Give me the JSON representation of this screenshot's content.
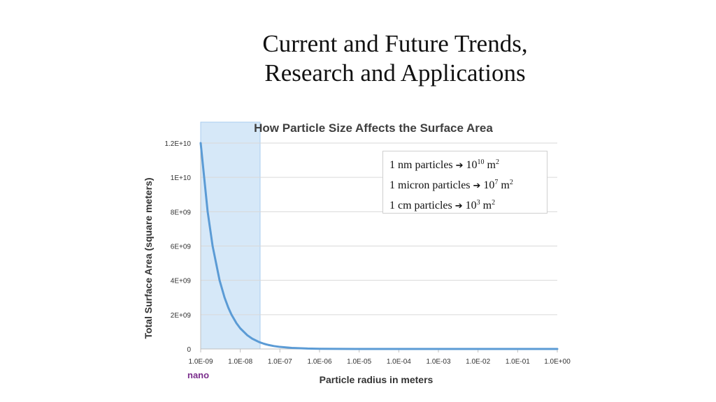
{
  "slide": {
    "title_line1": "Current and Future Trends,",
    "title_line2": "Research and Applications"
  },
  "legend": [
    {
      "text": "1 nm particles",
      "base": "10",
      "exp": "10",
      "unit": "m",
      "unit_exp": "2"
    },
    {
      "text": "1 micron particles",
      "base": "10",
      "exp": "7",
      "unit": "m",
      "unit_exp": "2"
    },
    {
      "text": "1 cm particles",
      "base": "10",
      "exp": "3",
      "unit": "m",
      "unit_exp": "2"
    }
  ],
  "annotations": {
    "nano": "nano"
  },
  "colors": {
    "line": "#5b9bd5",
    "nano_band": "#cfe4f7",
    "nano_band_edge": "#a9cdef",
    "grid": "#d9d9d9",
    "axis_text": "#333333",
    "nano_text": "#7a2d8c"
  },
  "chart_data": {
    "type": "line",
    "title": "How Particle Size Affects the Surface Area",
    "xlabel": "Particle radius in meters",
    "ylabel": "Total Surface Area (square meters)",
    "x_scale": "log",
    "x_tick_labels": [
      "1.0E-09",
      "1.0E-08",
      "1.0E-07",
      "1.0E-06",
      "1.0E-05",
      "1.0E-04",
      "1.0E-03",
      "1.0E-02",
      "1.0E-01",
      "1.0E+00"
    ],
    "x_tick_exponents": [
      -9,
      -8,
      -7,
      -6,
      -5,
      -4,
      -3,
      -2,
      -1,
      0
    ],
    "y_tick_labels": [
      "0",
      "2E+09",
      "4E+09",
      "6E+09",
      "8E+09",
      "1E+10",
      "1.2E+10"
    ],
    "y_tick_values": [
      0,
      2000000000,
      4000000000,
      6000000000,
      8000000000,
      10000000000,
      12000000000
    ],
    "ylim": [
      0,
      12000000000
    ],
    "nano_region": [
      -9,
      -7.5
    ],
    "series": [
      {
        "name": "Total surface area",
        "x": [
          1e-09,
          1.5e-09,
          2e-09,
          3e-09,
          4e-09,
          5e-09,
          6e-09,
          8e-09,
          1e-08,
          1.5e-08,
          2e-08,
          3e-08,
          4e-08,
          5e-08,
          7e-08,
          1e-07,
          2e-07,
          5e-07,
          1e-06,
          1e-05,
          0.0001,
          0.001,
          0.01,
          0.1,
          1
        ],
        "y": [
          12000000000,
          8000000000,
          6000000000,
          4000000000,
          3000000000,
          2400000000,
          2000000000,
          1500000000,
          1200000000,
          800000000,
          600000000,
          400000000,
          300000000,
          240000000,
          171000000,
          120000000,
          60000000,
          24000000,
          12000000,
          1200000,
          120000,
          12000,
          1200,
          120,
          12
        ]
      }
    ]
  }
}
